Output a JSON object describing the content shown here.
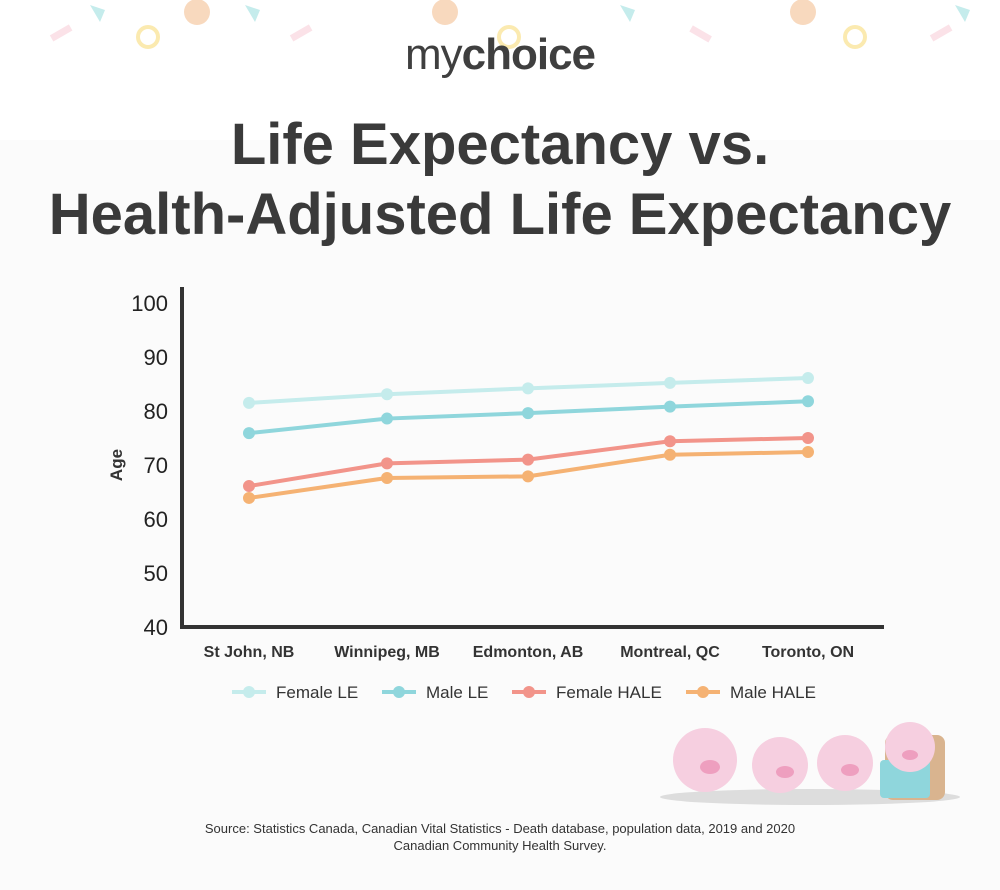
{
  "brand": {
    "logo_my": "my",
    "logo_choice": "choice"
  },
  "title_line1": "Life Expectancy vs.",
  "title_line2": "Health-Adjusted Life Expectancy",
  "chart_data": {
    "type": "line",
    "title": "Life Expectancy vs. Health-Adjusted Life Expectancy",
    "xlabel": "",
    "ylabel": "Age",
    "ylim": [
      40,
      100
    ],
    "yticks": [
      40,
      50,
      60,
      70,
      80,
      90,
      100
    ],
    "grid": false,
    "legend": "bottom",
    "categories": [
      "St John, NB",
      "Winnipeg, MB",
      "Edmonton, AB",
      "Montreal, QC",
      "Toronto, ON"
    ],
    "series": [
      {
        "name": "Female LE",
        "color": "#c5ecec",
        "values": [
          81.5,
          83.1,
          84.2,
          85.2,
          86.1
        ]
      },
      {
        "name": "Male LE",
        "color": "#8fd6dc",
        "values": [
          75.9,
          78.6,
          79.6,
          80.8,
          81.8
        ]
      },
      {
        "name": "Female HALE",
        "color": "#f2948a",
        "values": [
          66.1,
          70.3,
          71.0,
          74.4,
          75.0
        ]
      },
      {
        "name": "Male HALE",
        "color": "#f5b273",
        "values": [
          63.9,
          67.6,
          67.9,
          71.9,
          72.4
        ]
      }
    ]
  },
  "source_line1": "Source: Statistics Canada, Canadian Vital Statistics - Death database, population data, 2019 and 2020",
  "source_line2": "Canadian Community Health Survey."
}
